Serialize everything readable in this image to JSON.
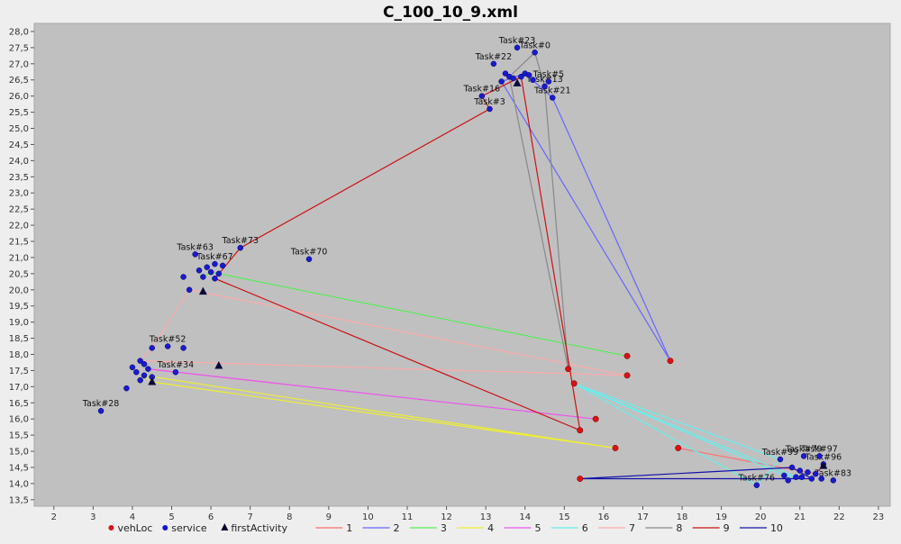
{
  "chart_data": {
    "type": "scatter",
    "title": "C_100_10_9.xml",
    "xlabel": "",
    "ylabel": "",
    "xlim": [
      1.5,
      23.3
    ],
    "ylim": [
      13.3,
      28.25
    ],
    "xticks": [
      2,
      3,
      4,
      5,
      6,
      7,
      8,
      9,
      10,
      11,
      12,
      13,
      14,
      15,
      16,
      17,
      18,
      19,
      20,
      21,
      22,
      23
    ],
    "yticks": [
      13.5,
      14.0,
      14.5,
      15.0,
      15.5,
      16.0,
      16.5,
      17.0,
      17.5,
      18.0,
      18.5,
      19.0,
      19.5,
      20.0,
      20.5,
      21.0,
      21.5,
      22.0,
      22.5,
      23.0,
      23.5,
      24.0,
      24.5,
      25.0,
      25.5,
      26.0,
      26.5,
      27.0,
      27.5,
      28.0
    ],
    "ytick_labels": [
      "13,5",
      "14,0",
      "14,5",
      "15,0",
      "15,5",
      "16,0",
      "16,5",
      "17,0",
      "17,5",
      "18,0",
      "18,5",
      "19,0",
      "19,5",
      "20,0",
      "20,5",
      "21,0",
      "21,5",
      "22,0",
      "22,5",
      "23,0",
      "23,5",
      "24,0",
      "24,5",
      "25,0",
      "25,5",
      "26,0",
      "26,5",
      "27,0",
      "27,5",
      "28,0"
    ],
    "grid": false,
    "legend": {
      "position": "bottom",
      "items": [
        {
          "label": "vehLoc",
          "kind": "dot",
          "color": "#dd1111"
        },
        {
          "label": "service",
          "kind": "dot",
          "color": "#1111dd"
        },
        {
          "label": "firstActivity",
          "kind": "triangle",
          "color": "#000033"
        },
        {
          "label": "1",
          "kind": "line",
          "color": "#ff7070"
        },
        {
          "label": "2",
          "kind": "line",
          "color": "#6666ff"
        },
        {
          "label": "3",
          "kind": "line",
          "color": "#55ee55"
        },
        {
          "label": "4",
          "kind": "line",
          "color": "#eeee33"
        },
        {
          "label": "5",
          "kind": "line",
          "color": "#ee55ee"
        },
        {
          "label": "6",
          "kind": "line",
          "color": "#66eeee"
        },
        {
          "label": "7",
          "kind": "line",
          "color": "#ffaaaa"
        },
        {
          "label": "8",
          "kind": "line",
          "color": "#888888"
        },
        {
          "label": "9",
          "kind": "line",
          "color": "#cc1111"
        },
        {
          "label": "10",
          "kind": "line",
          "color": "#1111aa"
        }
      ]
    },
    "vehLoc": [
      [
        15.1,
        17.55
      ],
      [
        15.25,
        17.1
      ],
      [
        16.6,
        17.95
      ],
      [
        16.6,
        17.35
      ],
      [
        15.8,
        16.0
      ],
      [
        15.4,
        15.65
      ],
      [
        16.3,
        15.1
      ],
      [
        17.7,
        17.8
      ],
      [
        17.9,
        15.1
      ],
      [
        15.4,
        14.15
      ]
    ],
    "firstActivity": [
      [
        6.2,
        17.65
      ],
      [
        13.8,
        26.4
      ],
      [
        5.8,
        19.95
      ],
      [
        4.5,
        17.15
      ],
      [
        21.6,
        14.55
      ]
    ],
    "service": [
      {
        "x": 14.25,
        "y": 27.35,
        "label": "Task#0"
      },
      {
        "x": 13.8,
        "y": 27.5,
        "label": "Task#23"
      },
      {
        "x": 13.2,
        "y": 27.0,
        "label": "Task#22"
      },
      {
        "x": 13.5,
        "y": 26.7,
        "label": ""
      },
      {
        "x": 13.6,
        "y": 26.6,
        "label": ""
      },
      {
        "x": 13.7,
        "y": 26.55,
        "label": ""
      },
      {
        "x": 13.9,
        "y": 26.6,
        "label": ""
      },
      {
        "x": 14.0,
        "y": 26.7,
        "label": ""
      },
      {
        "x": 14.1,
        "y": 26.65,
        "label": ""
      },
      {
        "x": 14.2,
        "y": 26.5,
        "label": ""
      },
      {
        "x": 13.4,
        "y": 26.45,
        "label": ""
      },
      {
        "x": 14.6,
        "y": 26.45,
        "label": "Task#5"
      },
      {
        "x": 14.5,
        "y": 26.3,
        "label": "Task#13"
      },
      {
        "x": 14.7,
        "y": 25.95,
        "label": "Task#21"
      },
      {
        "x": 12.9,
        "y": 26.0,
        "label": "Task#16"
      },
      {
        "x": 13.1,
        "y": 25.6,
        "label": "Task#3"
      },
      {
        "x": 6.75,
        "y": 21.3,
        "label": "Task#73"
      },
      {
        "x": 8.5,
        "y": 20.95,
        "label": "Task#70"
      },
      {
        "x": 5.6,
        "y": 21.1,
        "label": "Task#63"
      },
      {
        "x": 6.1,
        "y": 20.8,
        "label": "Task#67"
      },
      {
        "x": 5.9,
        "y": 20.7,
        "label": ""
      },
      {
        "x": 6.3,
        "y": 20.75,
        "label": ""
      },
      {
        "x": 5.7,
        "y": 20.6,
        "label": ""
      },
      {
        "x": 6.0,
        "y": 20.55,
        "label": ""
      },
      {
        "x": 6.2,
        "y": 20.5,
        "label": ""
      },
      {
        "x": 5.8,
        "y": 20.4,
        "label": ""
      },
      {
        "x": 6.1,
        "y": 20.35,
        "label": ""
      },
      {
        "x": 5.3,
        "y": 20.4,
        "label": ""
      },
      {
        "x": 5.45,
        "y": 20.0,
        "label": ""
      },
      {
        "x": 4.9,
        "y": 18.25,
        "label": "Task#52"
      },
      {
        "x": 4.5,
        "y": 18.2,
        "label": ""
      },
      {
        "x": 5.3,
        "y": 18.2,
        "label": ""
      },
      {
        "x": 4.2,
        "y": 17.8,
        "label": ""
      },
      {
        "x": 4.3,
        "y": 17.7,
        "label": ""
      },
      {
        "x": 4.0,
        "y": 17.6,
        "label": ""
      },
      {
        "x": 4.4,
        "y": 17.55,
        "label": ""
      },
      {
        "x": 4.1,
        "y": 17.45,
        "label": ""
      },
      {
        "x": 4.3,
        "y": 17.35,
        "label": ""
      },
      {
        "x": 4.5,
        "y": 17.3,
        "label": ""
      },
      {
        "x": 4.2,
        "y": 17.2,
        "label": ""
      },
      {
        "x": 5.1,
        "y": 17.45,
        "label": "Task#34"
      },
      {
        "x": 3.85,
        "y": 16.95,
        "label": ""
      },
      {
        "x": 3.2,
        "y": 16.25,
        "label": "Task#28"
      },
      {
        "x": 21.1,
        "y": 14.85,
        "label": "Task#79"
      },
      {
        "x": 21.5,
        "y": 14.85,
        "label": "Task#97"
      },
      {
        "x": 21.6,
        "y": 14.6,
        "label": "Task#96"
      },
      {
        "x": 20.5,
        "y": 14.75,
        "label": "Task#99"
      },
      {
        "x": 20.8,
        "y": 14.5,
        "label": ""
      },
      {
        "x": 21.0,
        "y": 14.4,
        "label": ""
      },
      {
        "x": 21.2,
        "y": 14.35,
        "label": ""
      },
      {
        "x": 21.4,
        "y": 14.3,
        "label": ""
      },
      {
        "x": 20.6,
        "y": 14.25,
        "label": ""
      },
      {
        "x": 20.9,
        "y": 14.2,
        "label": ""
      },
      {
        "x": 21.3,
        "y": 14.15,
        "label": ""
      },
      {
        "x": 21.55,
        "y": 14.15,
        "label": ""
      },
      {
        "x": 21.85,
        "y": 14.1,
        "label": "Task#83"
      },
      {
        "x": 20.7,
        "y": 14.1,
        "label": ""
      },
      {
        "x": 21.05,
        "y": 14.2,
        "label": ""
      },
      {
        "x": 19.9,
        "y": 13.95,
        "label": "Task#76"
      }
    ],
    "routes": [
      {
        "name": "1",
        "color": "#ff7070",
        "points": [
          [
            17.9,
            15.1
          ],
          [
            21.4,
            14.3
          ],
          [
            21.6,
            14.55
          ]
        ]
      },
      {
        "name": "2",
        "color": "#6666ff",
        "points": [
          [
            17.7,
            17.8
          ],
          [
            13.4,
            26.45
          ],
          [
            14.0,
            26.7
          ],
          [
            14.7,
            25.95
          ],
          [
            17.7,
            17.8
          ]
        ]
      },
      {
        "name": "3",
        "color": "#55ee55",
        "points": [
          [
            16.6,
            17.95
          ],
          [
            6.0,
            20.55
          ],
          [
            5.8,
            20.4
          ]
        ]
      },
      {
        "name": "4",
        "color": "#eeee33",
        "points": [
          [
            16.3,
            15.1
          ],
          [
            4.5,
            17.15
          ],
          [
            4.3,
            17.35
          ],
          [
            16.3,
            15.1
          ]
        ]
      },
      {
        "name": "5",
        "color": "#ee55ee",
        "points": [
          [
            15.8,
            16.0
          ],
          [
            4.4,
            17.55
          ],
          [
            5.1,
            17.45
          ],
          [
            15.8,
            16.0
          ]
        ]
      },
      {
        "name": "6",
        "color": "#66eeee",
        "points": [
          [
            15.25,
            17.1
          ],
          [
            20.6,
            14.25
          ],
          [
            20.9,
            14.2
          ],
          [
            15.25,
            17.1
          ],
          [
            20.5,
            14.75
          ],
          [
            19.9,
            13.95
          ],
          [
            15.25,
            17.1
          ]
        ]
      },
      {
        "name": "7",
        "color": "#ffaaaa",
        "points": [
          [
            16.6,
            17.35
          ],
          [
            5.45,
            20.0
          ],
          [
            4.5,
            18.2
          ],
          [
            4.2,
            17.8
          ],
          [
            16.6,
            17.35
          ]
        ]
      },
      {
        "name": "8",
        "color": "#888888",
        "points": [
          [
            15.1,
            17.55
          ],
          [
            13.6,
            26.6
          ],
          [
            14.25,
            27.35
          ],
          [
            14.5,
            26.3
          ],
          [
            15.1,
            17.55
          ]
        ]
      },
      {
        "name": "9",
        "color": "#cc1111",
        "points": [
          [
            15.4,
            15.65
          ],
          [
            6.1,
            20.35
          ],
          [
            6.75,
            21.3
          ],
          [
            13.1,
            25.6
          ],
          [
            12.9,
            26.0
          ],
          [
            13.9,
            26.6
          ],
          [
            15.4,
            15.65
          ]
        ]
      },
      {
        "name": "10",
        "color": "#1111aa",
        "points": [
          [
            15.4,
            14.15
          ],
          [
            20.8,
            14.5
          ],
          [
            21.3,
            14.15
          ],
          [
            15.4,
            14.15
          ]
        ]
      }
    ]
  }
}
